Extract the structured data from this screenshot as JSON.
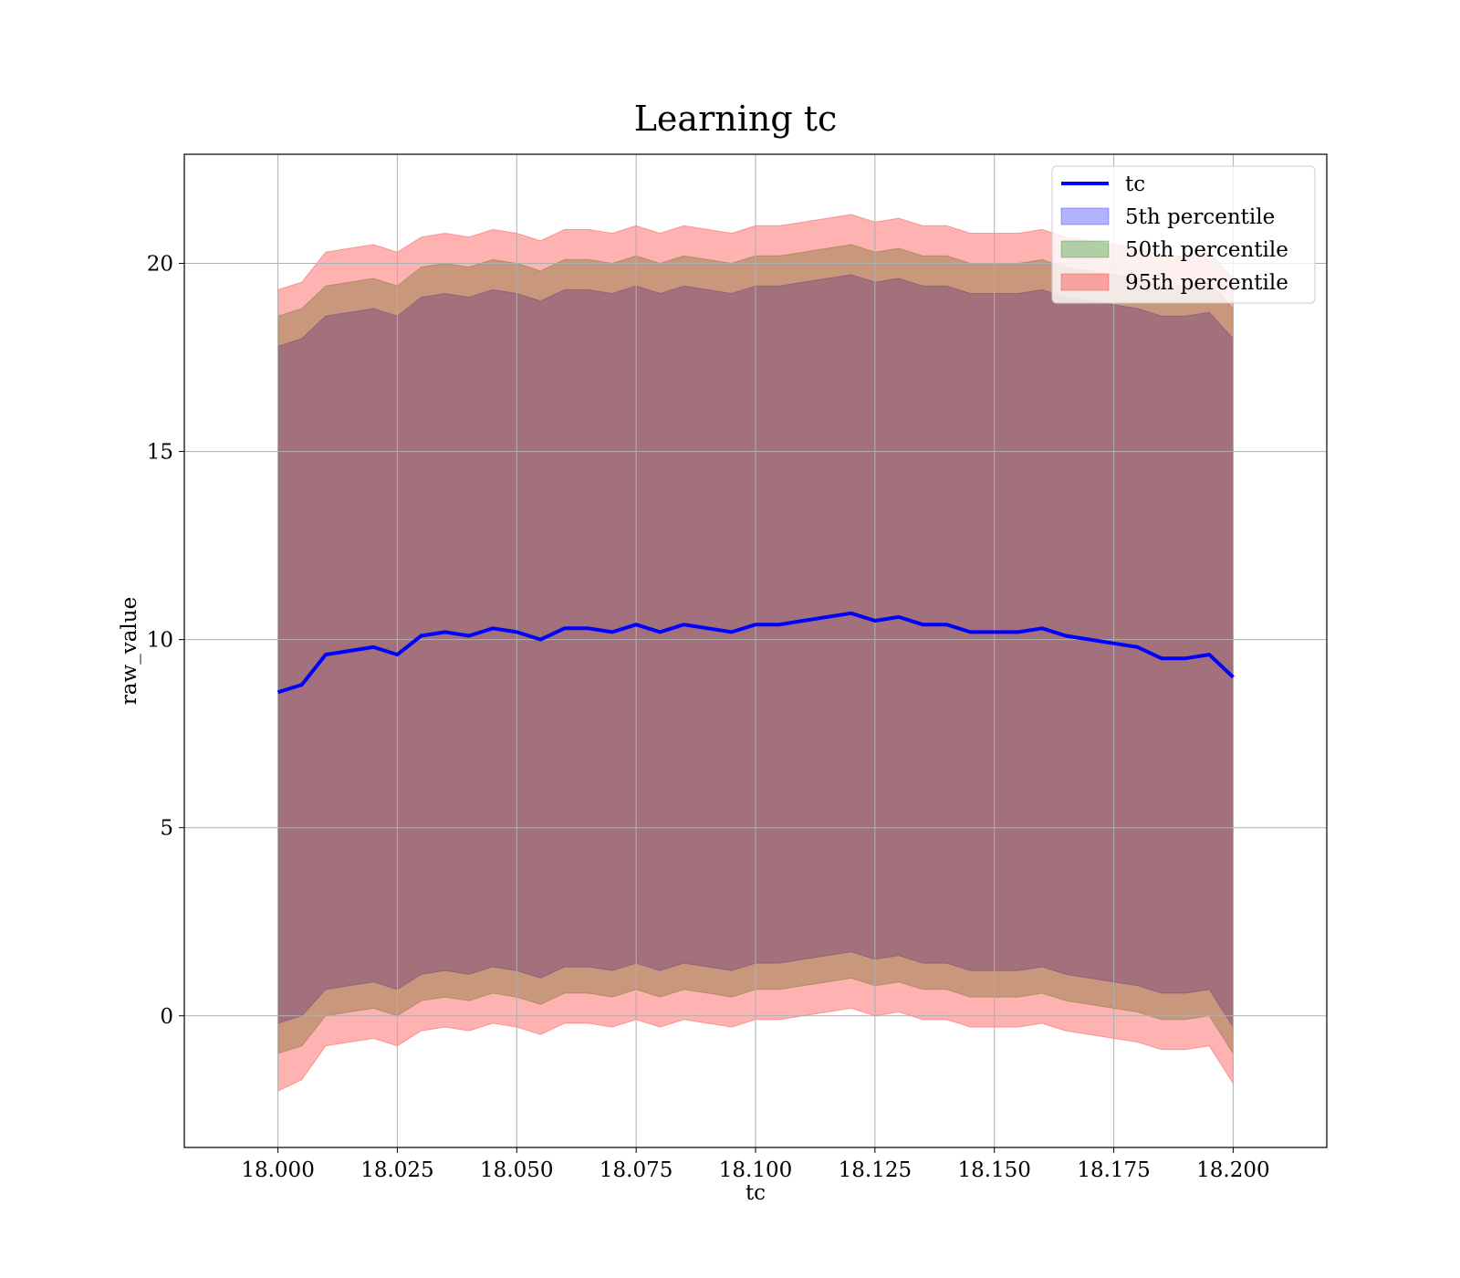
{
  "chart_data": {
    "type": "line",
    "title": "Learning tc",
    "xlabel": "tc",
    "ylabel": "raw_value",
    "xlim": [
      17.9804,
      18.2196
    ],
    "ylim": [
      -3.5,
      22.9
    ],
    "xticks": [
      18.0,
      18.025,
      18.05,
      18.075,
      18.1,
      18.125,
      18.15,
      18.175,
      18.2
    ],
    "xtick_labels": [
      "18.000",
      "18.025",
      "18.050",
      "18.075",
      "18.100",
      "18.125",
      "18.150",
      "18.175",
      "18.200"
    ],
    "yticks": [
      0,
      5,
      10,
      15,
      20
    ],
    "ytick_labels": [
      "0",
      "5",
      "10",
      "15",
      "20"
    ],
    "grid": true,
    "legend_position": "top-right",
    "x": [
      18.0,
      18.005,
      18.01,
      18.015,
      18.02,
      18.025,
      18.03,
      18.035,
      18.04,
      18.045,
      18.05,
      18.055,
      18.06,
      18.065,
      18.07,
      18.075,
      18.08,
      18.085,
      18.09,
      18.095,
      18.1,
      18.105,
      18.11,
      18.115,
      18.12,
      18.125,
      18.13,
      18.135,
      18.14,
      18.145,
      18.15,
      18.155,
      18.16,
      18.165,
      18.17,
      18.175,
      18.18,
      18.185,
      18.19,
      18.195,
      18.2
    ],
    "line": {
      "name": "tc",
      "color": "#0000ff",
      "values": [
        8.6,
        8.8,
        9.6,
        9.7,
        9.8,
        9.6,
        10.1,
        10.2,
        10.1,
        10.3,
        10.2,
        10.0,
        10.3,
        10.3,
        10.2,
        10.4,
        10.2,
        10.4,
        10.3,
        10.2,
        10.4,
        10.4,
        10.5,
        10.6,
        10.7,
        10.5,
        10.6,
        10.4,
        10.4,
        10.2,
        10.2,
        10.2,
        10.3,
        10.1,
        10.0,
        9.9,
        9.8,
        9.5,
        9.5,
        9.6,
        9.0
      ]
    },
    "bands": [
      {
        "name": "5th percentile",
        "color": "#0000ff",
        "lower": [
          -0.2,
          0.0,
          0.7,
          0.8,
          0.9,
          0.7,
          1.1,
          1.2,
          1.1,
          1.3,
          1.2,
          1.0,
          1.3,
          1.3,
          1.2,
          1.4,
          1.2,
          1.4,
          1.3,
          1.2,
          1.4,
          1.4,
          1.5,
          1.6,
          1.7,
          1.5,
          1.6,
          1.4,
          1.4,
          1.2,
          1.2,
          1.2,
          1.3,
          1.1,
          1.0,
          0.9,
          0.8,
          0.6,
          0.6,
          0.7,
          -0.3
        ],
        "upper": [
          17.8,
          18.0,
          18.6,
          18.7,
          18.8,
          18.6,
          19.1,
          19.2,
          19.1,
          19.3,
          19.2,
          19.0,
          19.3,
          19.3,
          19.2,
          19.4,
          19.2,
          19.4,
          19.3,
          19.2,
          19.4,
          19.4,
          19.5,
          19.6,
          19.7,
          19.5,
          19.6,
          19.4,
          19.4,
          19.2,
          19.2,
          19.2,
          19.3,
          19.1,
          19.0,
          18.9,
          18.8,
          18.6,
          18.6,
          18.7,
          18.0
        ]
      },
      {
        "name": "50th percentile",
        "color": "#008000",
        "lower": [
          -1.0,
          -0.8,
          0.0,
          0.1,
          0.2,
          0.0,
          0.4,
          0.5,
          0.4,
          0.6,
          0.5,
          0.3,
          0.6,
          0.6,
          0.5,
          0.7,
          0.5,
          0.7,
          0.6,
          0.5,
          0.7,
          0.7,
          0.8,
          0.9,
          1.0,
          0.8,
          0.9,
          0.7,
          0.7,
          0.5,
          0.5,
          0.5,
          0.6,
          0.4,
          0.3,
          0.2,
          0.1,
          -0.1,
          -0.1,
          0.0,
          -1.0
        ],
        "upper": [
          18.6,
          18.8,
          19.4,
          19.5,
          19.6,
          19.4,
          19.9,
          20.0,
          19.9,
          20.1,
          20.0,
          19.8,
          20.1,
          20.1,
          20.0,
          20.2,
          20.0,
          20.2,
          20.1,
          20.0,
          20.2,
          20.2,
          20.3,
          20.4,
          20.5,
          20.3,
          20.4,
          20.2,
          20.2,
          20.0,
          20.0,
          20.0,
          20.1,
          19.9,
          19.8,
          19.7,
          19.6,
          19.4,
          19.4,
          19.5,
          18.8
        ]
      },
      {
        "name": "95th percentile",
        "color": "#ff0000",
        "lower": [
          -2.0,
          -1.7,
          -0.8,
          -0.7,
          -0.6,
          -0.8,
          -0.4,
          -0.3,
          -0.4,
          -0.2,
          -0.3,
          -0.5,
          -0.2,
          -0.2,
          -0.3,
          -0.1,
          -0.3,
          -0.1,
          -0.2,
          -0.3,
          -0.1,
          -0.1,
          0.0,
          0.1,
          0.2,
          0.0,
          0.1,
          -0.1,
          -0.1,
          -0.3,
          -0.3,
          -0.3,
          -0.2,
          -0.4,
          -0.5,
          -0.6,
          -0.7,
          -0.9,
          -0.9,
          -0.8,
          -1.8
        ],
        "upper": [
          19.3,
          19.5,
          20.3,
          20.4,
          20.5,
          20.3,
          20.7,
          20.8,
          20.7,
          20.9,
          20.8,
          20.6,
          20.9,
          20.9,
          20.8,
          21.0,
          20.8,
          21.0,
          20.9,
          20.8,
          21.0,
          21.0,
          21.1,
          21.2,
          21.3,
          21.1,
          21.2,
          21.0,
          21.0,
          20.8,
          20.8,
          20.8,
          20.9,
          20.7,
          20.6,
          20.5,
          20.4,
          20.2,
          20.2,
          20.3,
          19.6
        ]
      }
    ]
  }
}
